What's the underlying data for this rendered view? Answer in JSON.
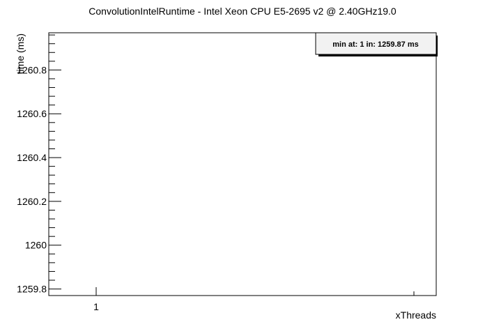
{
  "chart_data": {
    "type": "scatter",
    "title": "ConvolutionIntelRuntime - Intel Xeon CPU E5-2695 v2 @ 2.40GHz19.0",
    "xlabel": "xThreads",
    "ylabel": "time (ms)",
    "ylim": [
      1259.77,
      1260.97
    ],
    "y_ticks": [
      1259.8,
      1260,
      1260.2,
      1260.4,
      1260.6,
      1260.8
    ],
    "y_tick_labels": [
      "1259.8",
      "1260",
      "1260.2",
      "1260.4",
      "1260.6",
      "1260.8"
    ],
    "x_ticks": [
      1
    ],
    "x_tick_labels": [
      "1"
    ],
    "grid": false,
    "legend_position": "top-right",
    "series": [
      {
        "values": []
      }
    ],
    "annotation": "min at: 1 in: 1259.87 ms"
  }
}
